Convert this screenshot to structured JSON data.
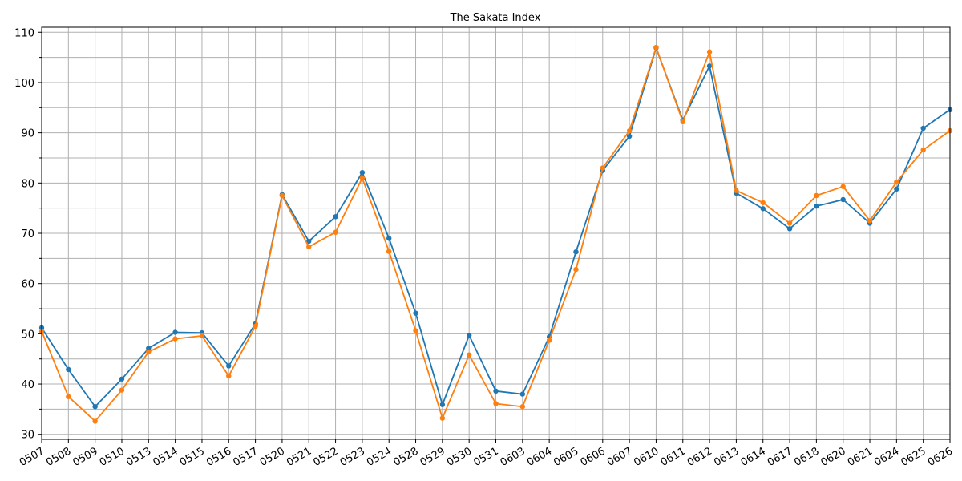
{
  "chart_data": {
    "type": "line",
    "title": "The Sakata Index",
    "xlabel": "",
    "ylabel": "",
    "categories": [
      "0507",
      "0508",
      "0509",
      "0510",
      "0513",
      "0514",
      "0515",
      "0516",
      "0517",
      "0520",
      "0521",
      "0522",
      "0523",
      "0524",
      "0528",
      "0529",
      "0530",
      "0531",
      "0603",
      "0604",
      "0605",
      "0606",
      "0607",
      "0610",
      "0611",
      "0612",
      "0613",
      "0614",
      "0617",
      "0618",
      "0620",
      "0621",
      "0624",
      "0625",
      "0626"
    ],
    "ylim": [
      29,
      111
    ],
    "yticks": [
      30,
      40,
      50,
      60,
      70,
      80,
      90,
      100,
      110
    ],
    "y_minor_step": 5,
    "grid": true,
    "legend": "none",
    "series": [
      {
        "color": "#1f77b4",
        "values": [
          51.2,
          42.9,
          35.5,
          41.0,
          47.1,
          50.3,
          50.2,
          43.6,
          52.0,
          77.7,
          68.4,
          73.3,
          82.1,
          69.0,
          54.1,
          35.9,
          49.7,
          38.6,
          38.0,
          49.4,
          66.3,
          82.5,
          89.3,
          106.9,
          92.5,
          103.3,
          78.0,
          74.9,
          70.9,
          75.4,
          76.7,
          72.0,
          78.8,
          90.9,
          94.6
        ]
      },
      {
        "color": "#ff7f0e",
        "values": [
          50.5,
          37.5,
          32.6,
          38.8,
          46.4,
          49.0,
          49.6,
          41.6,
          51.5,
          77.5,
          67.3,
          70.2,
          81.0,
          66.4,
          50.6,
          33.2,
          45.8,
          36.1,
          35.5,
          48.7,
          62.8,
          83.0,
          90.4,
          107.0,
          92.2,
          106.1,
          78.5,
          76.1,
          72.0,
          77.5,
          79.3,
          72.5,
          80.2,
          86.6,
          90.4
        ]
      }
    ]
  }
}
